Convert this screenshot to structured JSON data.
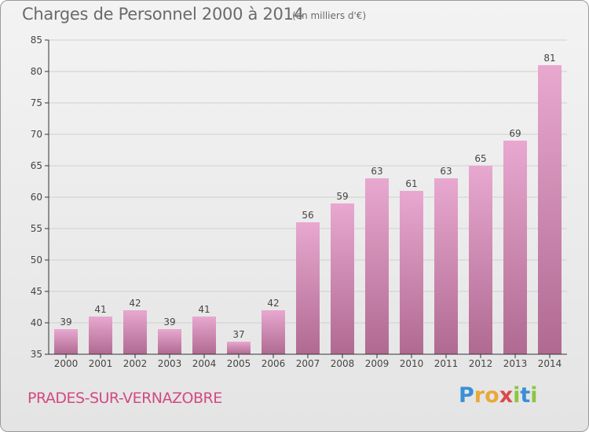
{
  "header": {
    "title": "Charges de Personnel 2000 à 2014",
    "unit": "(en milliers d'€)"
  },
  "commune": "PRADES-SUR-VERNAZOBRE",
  "logo": {
    "letters": [
      "P",
      "r",
      "o",
      "x",
      "i",
      "t",
      "i"
    ],
    "colors": [
      "#3a8fd6",
      "#e8a93a",
      "#e8a93a",
      "#d84a4a",
      "#8cc63f",
      "#3a8fd6",
      "#8cc63f"
    ]
  },
  "colors": {
    "bar_top": "#e8a8cf",
    "bar_bottom": "#b06a92",
    "axis": "#333333",
    "grid": "#d0d0d0"
  },
  "chart_data": {
    "type": "bar",
    "title": "Charges de Personnel 2000 à 2014",
    "subtitle": "(en milliers d'€)",
    "categories": [
      "2000",
      "2001",
      "2002",
      "2003",
      "2004",
      "2005",
      "2006",
      "2007",
      "2008",
      "2009",
      "2010",
      "2011",
      "2012",
      "2013",
      "2014"
    ],
    "values": [
      39,
      41,
      42,
      39,
      41,
      37,
      42,
      56,
      59,
      63,
      61,
      63,
      65,
      69,
      81
    ],
    "ylim": [
      35,
      85
    ],
    "yticks": [
      "35",
      "40",
      "45",
      "50",
      "55",
      "60",
      "65",
      "70",
      "75",
      "80",
      "85"
    ],
    "grid": true,
    "data_labels": true
  }
}
